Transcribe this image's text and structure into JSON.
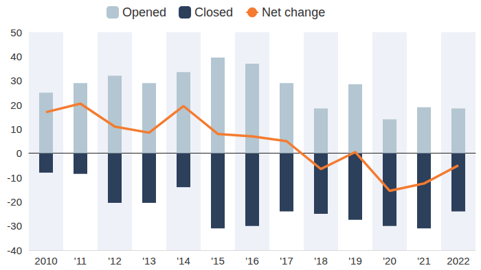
{
  "chart_data": {
    "type": "bar",
    "categories": [
      "2010",
      "'11",
      "'12",
      "'13",
      "'14",
      "'15",
      "'16",
      "'17",
      "'18",
      "'19",
      "'20",
      "'21",
      "2022"
    ],
    "series": [
      {
        "name": "Opened",
        "type": "bar",
        "color": "#b3c6d1",
        "values": [
          25,
          29,
          32,
          29,
          33.5,
          39.5,
          37,
          29,
          18.5,
          28.5,
          14,
          19,
          18.5
        ]
      },
      {
        "name": "Closed",
        "type": "bar",
        "color": "#2c3f5b",
        "values": [
          -8,
          -8.5,
          -20.5,
          -20.5,
          -14,
          -31,
          -30,
          -24,
          -25,
          -27.5,
          -30,
          -31,
          -24
        ]
      },
      {
        "name": "Net change",
        "type": "line",
        "color": "#f47b2f",
        "values": [
          17,
          20.5,
          11,
          8.5,
          19.5,
          8,
          7,
          5,
          -6.5,
          0.5,
          -15.5,
          -12.5,
          -5
        ]
      }
    ],
    "ylim": [
      -40,
      50
    ],
    "yticks": [
      -40,
      -30,
      -20,
      -10,
      0,
      10,
      20,
      30,
      40,
      50
    ],
    "grid": true,
    "stacked": true,
    "legend": "top"
  }
}
